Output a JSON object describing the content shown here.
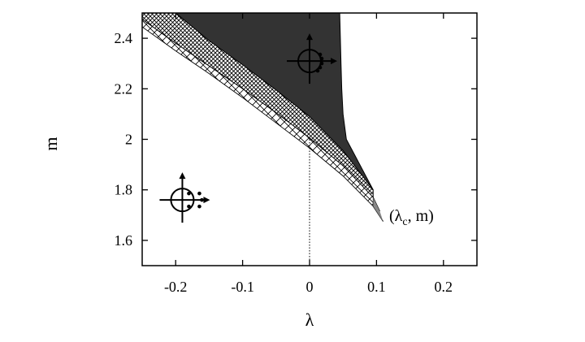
{
  "chart_data": {
    "type": "area",
    "title": "",
    "xlabel": "λ",
    "ylabel": "m",
    "xlim": [
      -0.25,
      0.25
    ],
    "ylim": [
      1.5,
      2.5
    ],
    "x_ticks": [
      "-0.2",
      "-0.1",
      "0",
      "0.1",
      "0.2"
    ],
    "y_ticks": [
      "1.6",
      "1.8",
      "2",
      "2.2",
      "2.4"
    ],
    "grid": false,
    "regions": [
      {
        "name": "dark",
        "fill": "#333333",
        "upper_right_boundary": {
          "x": [
            0.045,
            0.046,
            0.047,
            0.048,
            0.05,
            0.055,
            0.065,
            0.075,
            0.085,
            0.095
          ],
          "y": [
            2.5,
            2.4,
            2.3,
            2.2,
            2.1,
            2.0,
            1.95,
            1.9,
            1.85,
            1.8
          ]
        },
        "lower_boundary": {
          "x": [
            -0.2,
            -0.15,
            -0.1,
            -0.05,
            0.0,
            0.05,
            0.095
          ],
          "y": [
            2.5,
            2.39,
            2.295,
            2.195,
            2.09,
            1.955,
            1.8
          ]
        }
      },
      {
        "name": "crosshatch-fine",
        "pattern": "fine",
        "upper_boundary": {
          "x": [
            -0.2,
            -0.15,
            -0.1,
            -0.05,
            0.0,
            0.05,
            0.095
          ],
          "y": [
            2.5,
            2.39,
            2.295,
            2.195,
            2.09,
            1.955,
            1.8
          ]
        },
        "lower_boundary": {
          "x": [
            -0.25,
            -0.2,
            -0.15,
            -0.1,
            -0.05,
            0.0,
            0.05,
            0.095
          ],
          "y": [
            2.475,
            2.38,
            2.29,
            2.2,
            2.105,
            2.005,
            1.895,
            1.77
          ]
        }
      },
      {
        "name": "crosshatch-coarse",
        "pattern": "coarse",
        "upper_boundary": {
          "x": [
            -0.25,
            -0.2,
            -0.15,
            -0.1,
            -0.05,
            0.0,
            0.05,
            0.095
          ],
          "y": [
            2.475,
            2.38,
            2.29,
            2.2,
            2.105,
            2.005,
            1.895,
            1.77
          ]
        },
        "lower_boundary": {
          "x": [
            -0.25,
            -0.2,
            -0.15,
            -0.1,
            -0.05,
            0.0,
            0.05,
            0.095
          ],
          "y": [
            2.445,
            2.35,
            2.26,
            2.165,
            2.065,
            1.965,
            1.855,
            1.735
          ]
        }
      }
    ],
    "curves": [
      {
        "name": "lower-line",
        "x": [
          0.095,
          0.11
        ],
        "y": [
          1.735,
          1.675
        ]
      },
      {
        "name": "mid-line",
        "x": [
          0.095,
          0.105
        ],
        "y": [
          1.77,
          1.715
        ]
      }
    ],
    "vertical_dotted_line": {
      "x": 0.0,
      "y_from": 1.5,
      "y_to": 2.005
    },
    "annotation": {
      "text_main": "(λ",
      "text_sub": "c",
      "text_tail": ", m)",
      "x": 0.115,
      "y": 1.6
    },
    "icons": [
      {
        "name": "eigenvalue-icon-right",
        "cx": 0.0,
        "cy": 2.31,
        "dots_side": "right"
      },
      {
        "name": "eigenvalue-icon-left",
        "cx": -0.19,
        "cy": 1.76,
        "dots_side": "left-inside"
      }
    ]
  }
}
